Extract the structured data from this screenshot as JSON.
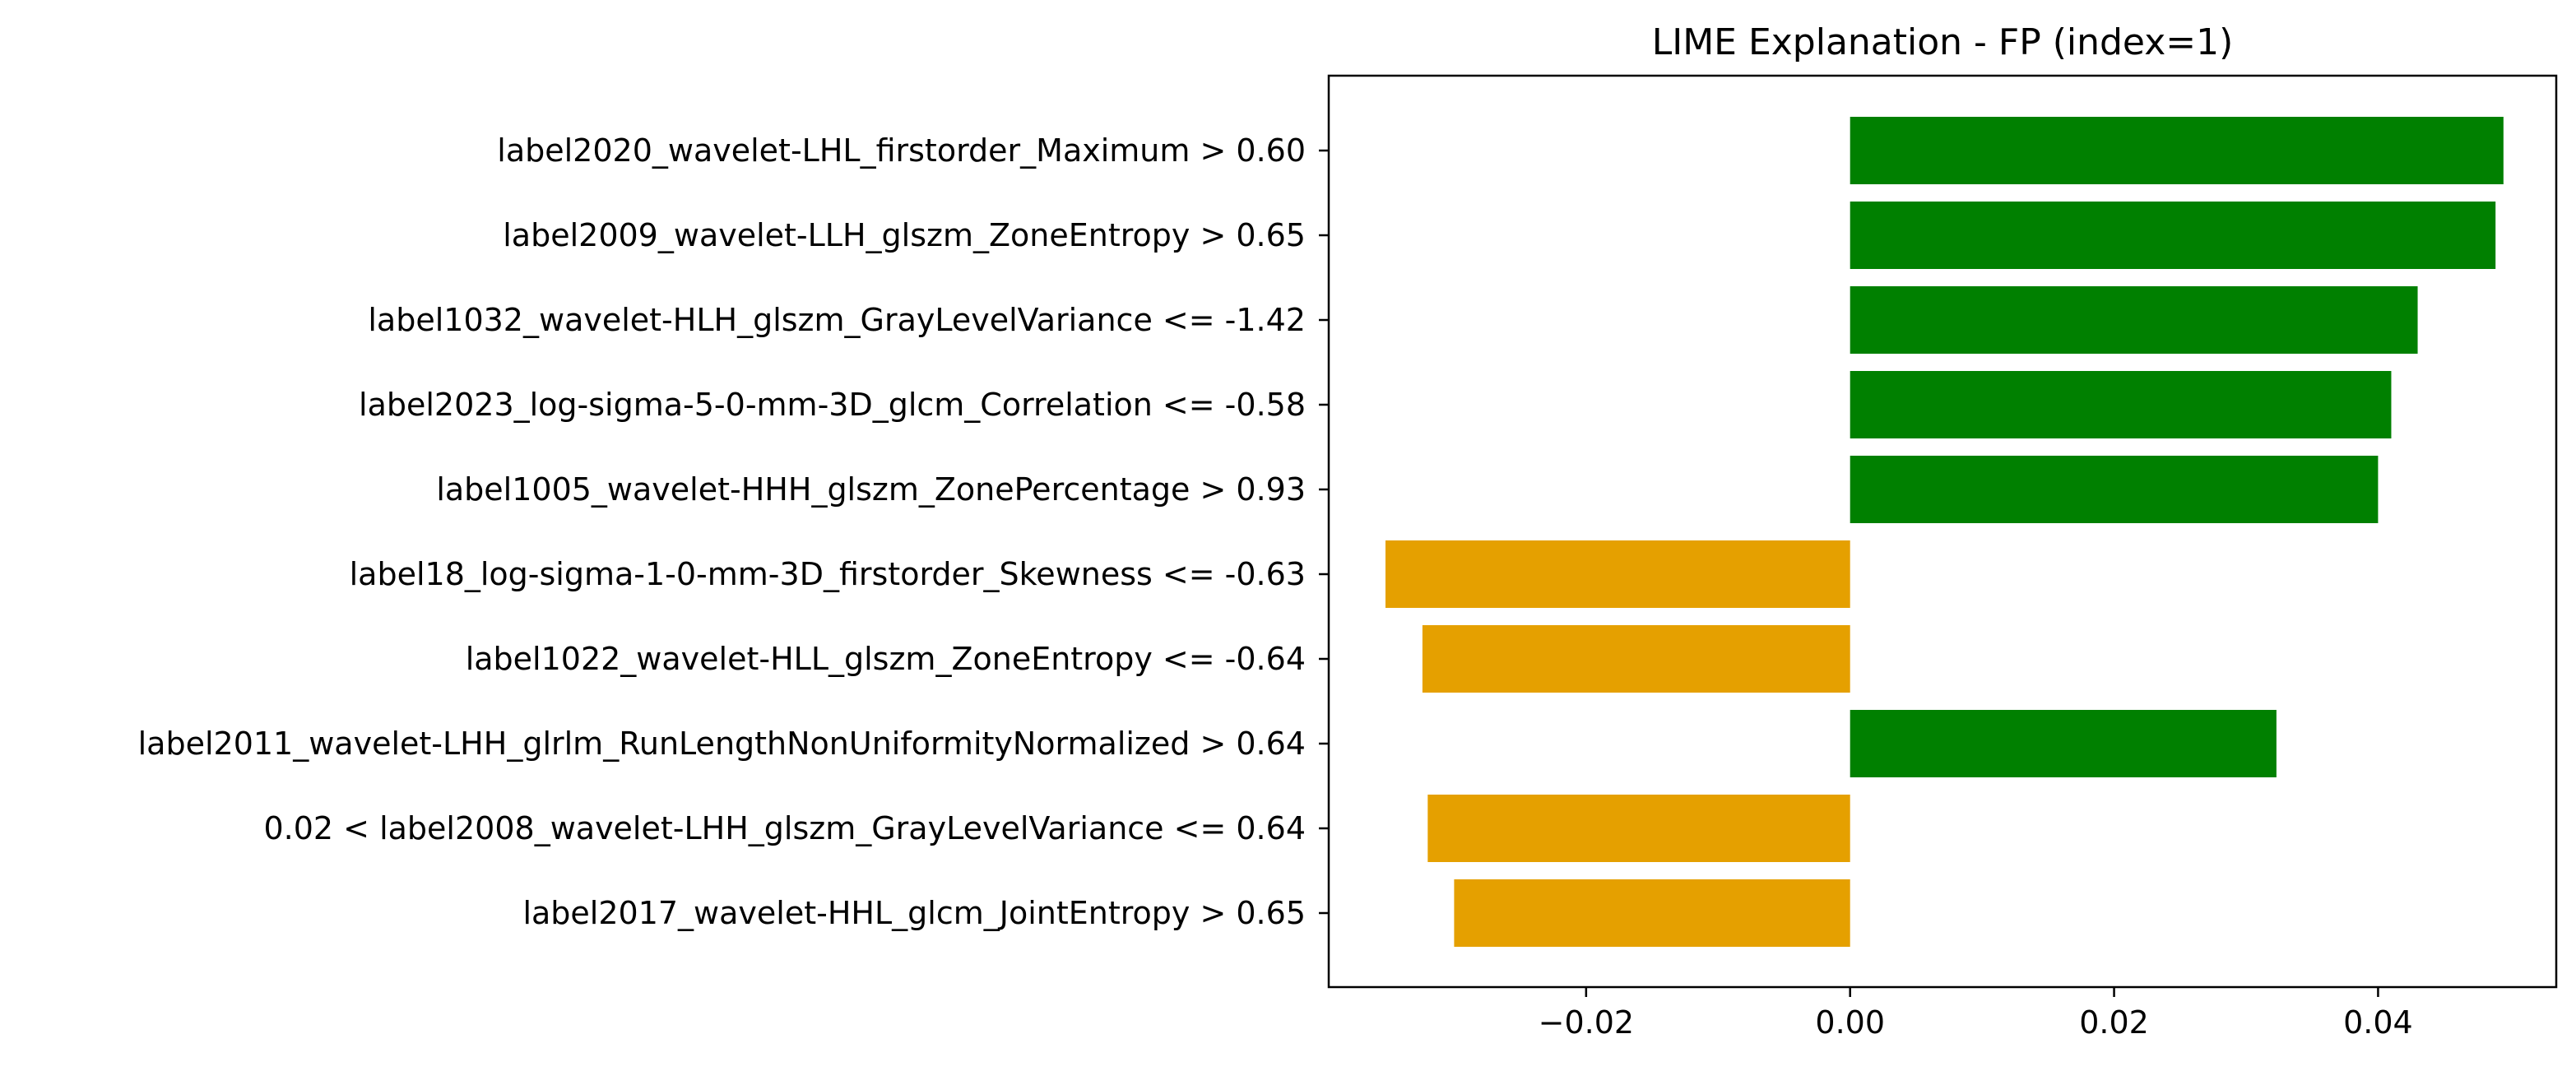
{
  "chart_data": {
    "type": "bar",
    "orientation": "horizontal",
    "title": "LIME Explanation - FP (index=1)",
    "xlabel": "",
    "ylabel": "",
    "xlim": [
      -0.0395,
      0.0535
    ],
    "xticks": [
      -0.02,
      0.0,
      0.02,
      0.04
    ],
    "xtick_labels": [
      "−0.02",
      "0.00",
      "0.02",
      "0.04"
    ],
    "grid": false,
    "legend": "none",
    "colors": {
      "positive": "#008000",
      "negative": "#E5A000"
    },
    "categories": [
      "label2020_wavelet-LHL_firstorder_Maximum > 0.60",
      "label2009_wavelet-LLH_glszm_ZoneEntropy > 0.65",
      "label1032_wavelet-HLH_glszm_GrayLevelVariance <= -1.42",
      "label2023_log-sigma-5-0-mm-3D_glcm_Correlation <= -0.58",
      "label1005_wavelet-HHH_glszm_ZonePercentage > 0.93",
      "label18_log-sigma-1-0-mm-3D_firstorder_Skewness <= -0.63",
      "label1022_wavelet-HLL_glszm_ZoneEntropy <= -0.64",
      "label2011_wavelet-LHH_glrlm_RunLengthNonUniformityNormalized > 0.64",
      "0.02 < label2008_wavelet-LHH_glszm_GrayLevelVariance <= 0.64",
      "label2017_wavelet-HHL_glcm_JointEntropy > 0.65"
    ],
    "values": [
      0.0495,
      0.0489,
      0.043,
      0.041,
      0.04,
      -0.0352,
      -0.0324,
      0.0323,
      -0.032,
      -0.03
    ]
  }
}
